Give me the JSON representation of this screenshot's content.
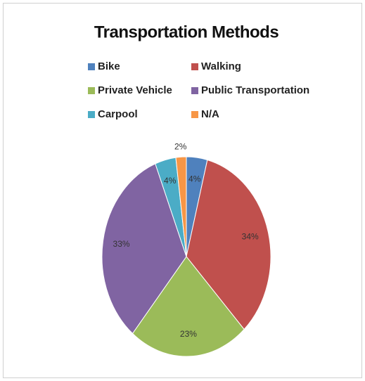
{
  "chart_data": {
    "type": "pie",
    "title": "Transportation Methods",
    "categories": [
      "Bike",
      "Walking",
      "Private Vehicle",
      "Public Transportation",
      "Carpool",
      "N/A"
    ],
    "values": [
      4,
      34,
      23,
      33,
      4,
      2
    ],
    "value_labels": [
      "4%",
      "34%",
      "23%",
      "33%",
      "4%",
      "2%"
    ],
    "colors": [
      "#4f81bd",
      "#c0504d",
      "#9bbb59",
      "#8064a2",
      "#4bacc6",
      "#f79646"
    ]
  }
}
